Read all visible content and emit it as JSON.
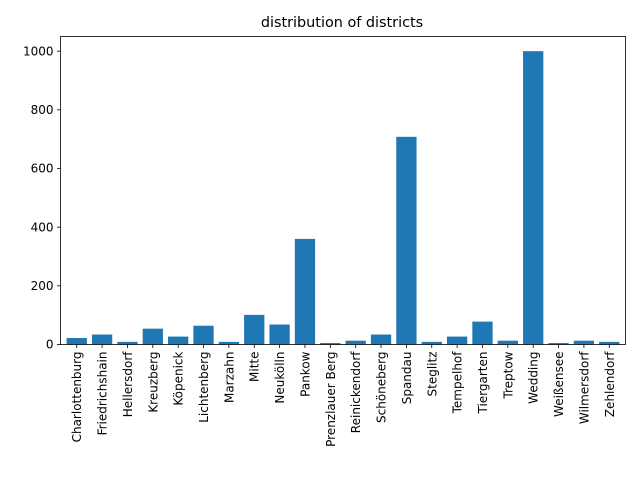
{
  "chart_data": {
    "type": "bar",
    "title": "distribution of districts",
    "xlabel": "",
    "ylabel": "",
    "categories": [
      "Charlottenburg",
      "Friedrichshain",
      "Hellersdorf",
      "Kreuzberg",
      "Köpenick",
      "Lichtenberg",
      "Marzahn",
      "Mitte",
      "Neukölln",
      "Pankow",
      "Prenzlauer Berg",
      "Reinickendorf",
      "Schöneberg",
      "Spandau",
      "Steglitz",
      "Tempelhof",
      "Tiergarten",
      "Treptow",
      "Wedding",
      "Weißensee",
      "Wilmersdorf",
      "Zehlendorf"
    ],
    "values": [
      22,
      34,
      9,
      54,
      27,
      64,
      9,
      101,
      68,
      360,
      5,
      13,
      34,
      708,
      9,
      27,
      78,
      13,
      1000,
      5,
      13,
      9
    ],
    "ylim": [
      0,
      1050
    ],
    "yticks": [
      0,
      200,
      400,
      600,
      800,
      1000
    ],
    "grid": false,
    "bar_color": "#1f77b4"
  }
}
